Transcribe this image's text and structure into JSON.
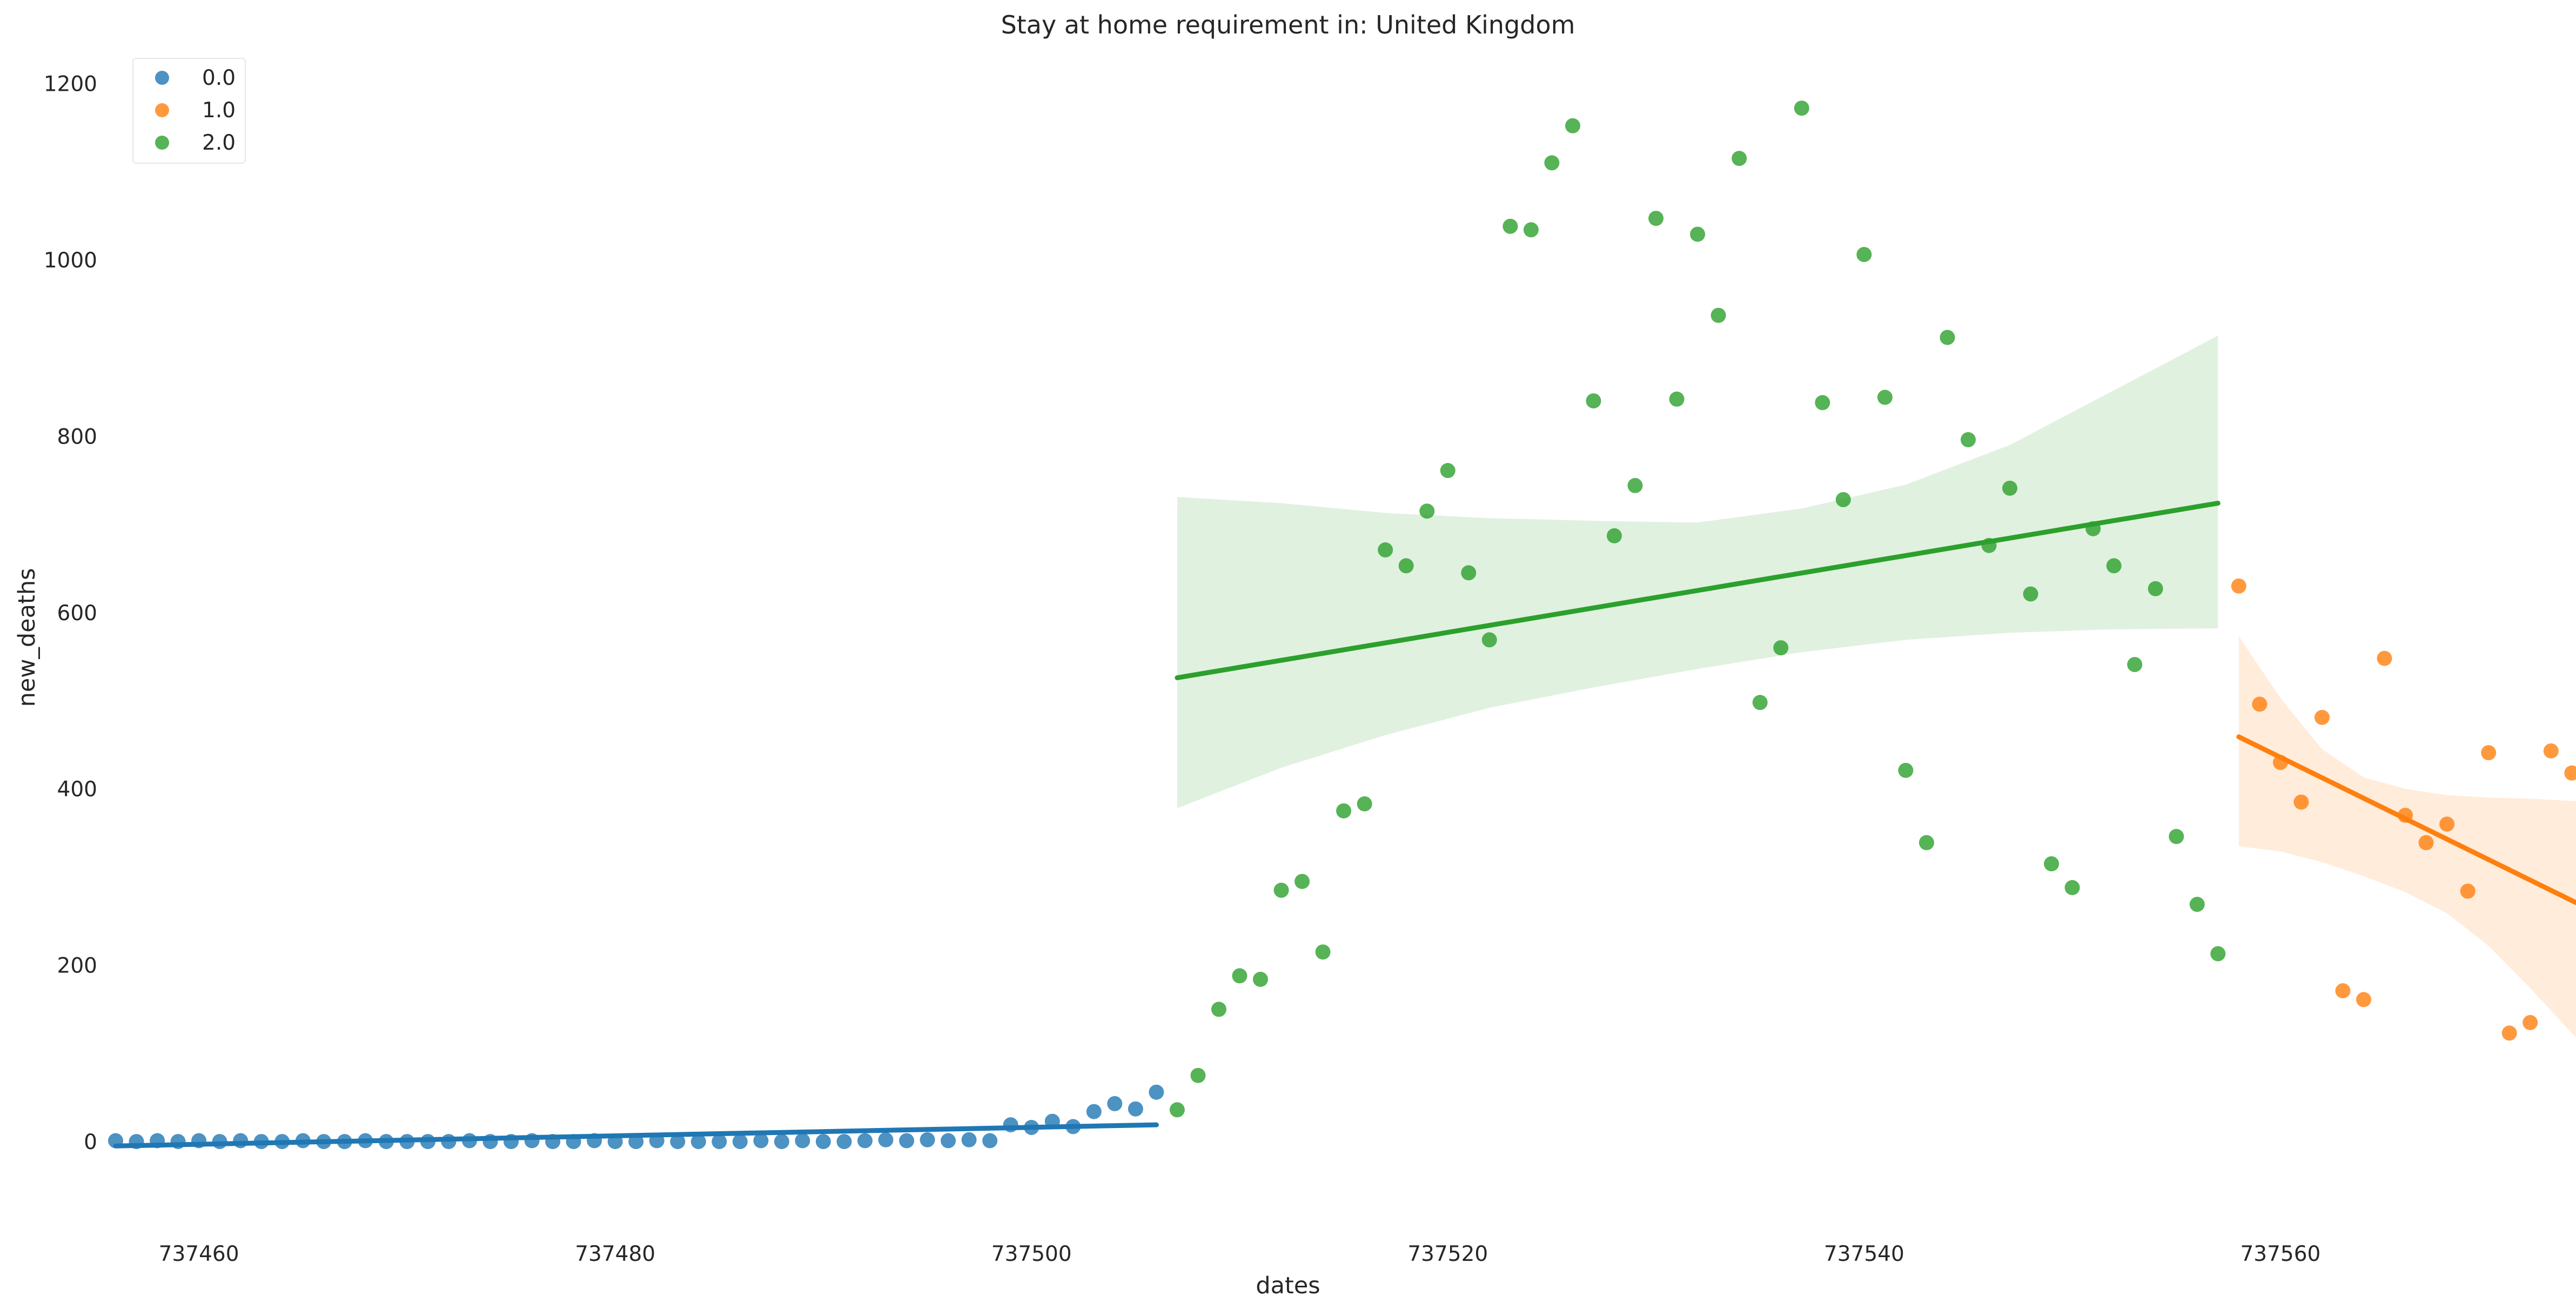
{
  "chart_data": {
    "type": "scatter",
    "title": "Stay at home requirement in: United Kingdom",
    "xlabel": "dates",
    "ylabel": "new_deaths",
    "xlim": [
      737456.0,
      737574.2
    ],
    "ylim": [
      -90,
      1215
    ],
    "xticks": [
      737460,
      737480,
      737500,
      737520,
      737540,
      737560
    ],
    "yticks": [
      0,
      200,
      400,
      600,
      800,
      1000,
      1200
    ],
    "grid": false,
    "legend": {
      "placement": "top-left",
      "entries": [
        "0.0",
        "1.0",
        "2.0"
      ]
    },
    "series": [
      {
        "name": "0.0",
        "color": "#1f77b4",
        "x": [
          737456,
          737457,
          737458,
          737459,
          737460,
          737461,
          737462,
          737463,
          737464,
          737465,
          737466,
          737467,
          737468,
          737469,
          737470,
          737471,
          737472,
          737473,
          737474,
          737475,
          737476,
          737477,
          737478,
          737479,
          737480,
          737481,
          737482,
          737483,
          737484,
          737485,
          737486,
          737487,
          737488,
          737489,
          737490,
          737491,
          737492,
          737493,
          737494,
          737495,
          737496,
          737497,
          737498,
          737499,
          737500,
          737501,
          737502,
          737503,
          737504,
          737505,
          737506
        ],
        "y": [
          1,
          0,
          1,
          0,
          1,
          0,
          1,
          0,
          0,
          1,
          0,
          0,
          1,
          0,
          0,
          0,
          0,
          1,
          0,
          0,
          1,
          0,
          0,
          1,
          0,
          0,
          1,
          0,
          0,
          0,
          0,
          1,
          0,
          1,
          0,
          0,
          1,
          2,
          1,
          2,
          1,
          2,
          1,
          19,
          16,
          23,
          17,
          34,
          43,
          37,
          56
        ],
        "regression": {
          "x": [
            737456,
            737506
          ],
          "y": [
            -5,
            19
          ]
        },
        "ci": null
      },
      {
        "name": "1.0",
        "color": "#ff7f0e",
        "x": [
          737558,
          737559,
          737560,
          737561,
          737562,
          737563,
          737564,
          737565,
          737566,
          737567,
          737568,
          737569,
          737570,
          737571,
          737572,
          737573,
          737574
        ],
        "y": [
          630,
          496,
          430,
          385,
          481,
          171,
          161,
          548,
          370,
          339,
          360,
          284,
          441,
          123,
          135,
          443,
          418
        ],
        "regression": {
          "x": [
            737558,
            737574.2
          ],
          "y": [
            459,
            271
          ]
        },
        "ci": {
          "x": [
            737558,
            737560,
            737562,
            737564,
            737566,
            737568,
            737570,
            737572,
            737574.2
          ],
          "lower": [
            335,
            329,
            317,
            301,
            283,
            259,
            222,
            174,
            118
          ],
          "upper": [
            573,
            503,
            445,
            413,
            400,
            393,
            390,
            389,
            386
          ]
        }
      },
      {
        "name": "2.0",
        "color": "#2ca02c",
        "x": [
          737507,
          737508,
          737509,
          737510,
          737511,
          737512,
          737513,
          737514,
          737515,
          737516,
          737517,
          737518,
          737519,
          737520,
          737521,
          737522,
          737523,
          737524,
          737525,
          737526,
          737527,
          737528,
          737529,
          737530,
          737531,
          737532,
          737533,
          737534,
          737535,
          737536,
          737537,
          737538,
          737539,
          737540,
          737541,
          737542,
          737543,
          737544,
          737545,
          737546,
          737547,
          737548,
          737549,
          737550,
          737551,
          737552,
          737553,
          737554,
          737555,
          737556,
          737557
        ],
        "y": [
          36,
          75,
          150,
          188,
          184,
          285,
          295,
          215,
          375,
          383,
          671,
          653,
          715,
          761,
          645,
          569,
          1038,
          1034,
          1110,
          1152,
          840,
          687,
          744,
          1047,
          842,
          1029,
          937,
          1115,
          498,
          560,
          1172,
          838,
          728,
          1006,
          844,
          421,
          339,
          912,
          796,
          676,
          741,
          621,
          315,
          288,
          695,
          653,
          541,
          627,
          346,
          269,
          213
        ],
        "regression": {
          "x": [
            737507,
            737557
          ],
          "y": [
            526,
            724
          ]
        },
        "ci": {
          "x": [
            737507,
            737512,
            737517,
            737522,
            737527,
            737532,
            737537,
            737542,
            737547,
            737552,
            737557
          ],
          "lower": [
            378,
            424,
            461,
            492,
            515,
            536,
            555,
            569,
            577,
            581,
            582
          ],
          "upper": [
            731,
            724,
            713,
            707,
            704,
            702,
            718,
            745,
            790,
            852,
            914
          ]
        }
      }
    ]
  }
}
